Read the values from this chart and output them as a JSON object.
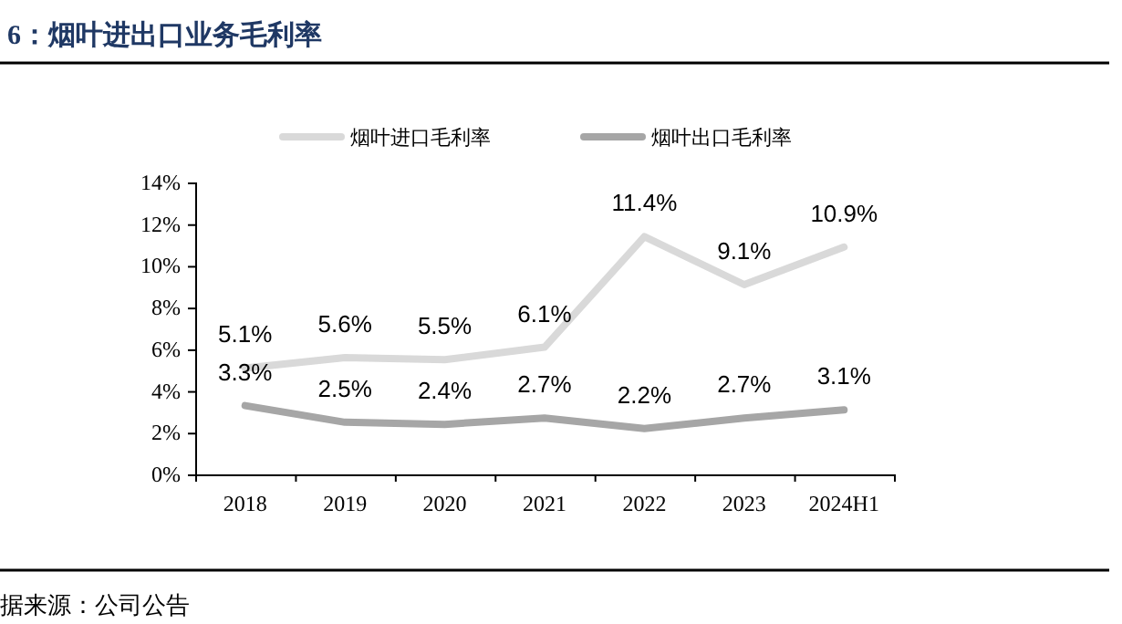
{
  "chart_data": {
    "type": "line",
    "title": "6：烟叶进出口业务毛利率",
    "categories": [
      "2018",
      "2019",
      "2020",
      "2021",
      "2022",
      "2023",
      "2024H1"
    ],
    "series": [
      {
        "name": "烟叶进口毛利率",
        "color": "#d9d9d9",
        "values": [
          5.1,
          5.6,
          5.5,
          6.1,
          11.4,
          9.1,
          10.9
        ],
        "value_labels": [
          "5.1%",
          "5.6%",
          "5.5%",
          "6.1%",
          "11.4%",
          "9.1%",
          "10.9%"
        ]
      },
      {
        "name": "烟叶出口毛利率",
        "color": "#a6a6a6",
        "values": [
          3.3,
          2.5,
          2.4,
          2.7,
          2.2,
          2.7,
          3.1
        ],
        "value_labels": [
          "3.3%",
          "2.5%",
          "2.4%",
          "2.7%",
          "2.2%",
          "2.7%",
          "3.1%"
        ]
      }
    ],
    "ylim": [
      0,
      14
    ],
    "yticks": [
      {
        "value": 0,
        "label": "0%"
      },
      {
        "value": 2,
        "label": "2%"
      },
      {
        "value": 4,
        "label": "4%"
      },
      {
        "value": 6,
        "label": "6%"
      },
      {
        "value": 8,
        "label": "8%"
      },
      {
        "value": 10,
        "label": "10%"
      },
      {
        "value": 12,
        "label": "12%"
      },
      {
        "value": 14,
        "label": "14%"
      }
    ],
    "grid": false,
    "legend": "top",
    "marker": "none",
    "line_style": "solid",
    "annotations": [
      "据来源：公司公告"
    ]
  }
}
